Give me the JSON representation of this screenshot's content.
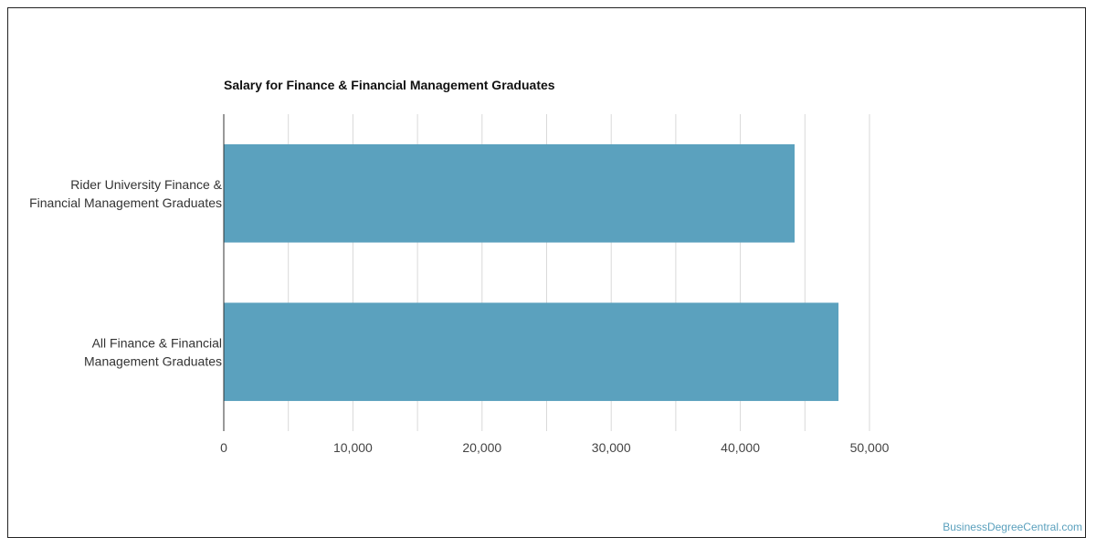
{
  "colors": {
    "bar": "#5ba1be",
    "grid": "#d9d9d9",
    "axis": "#333333"
  },
  "credit": "BusinessDegreeCentral.com",
  "chart_data": {
    "type": "bar",
    "orientation": "horizontal",
    "title": "Salary for Finance & Financial Management Graduates",
    "categories": [
      "Rider University Finance & Financial Management Graduates",
      "All Finance & Financial Management Graduates"
    ],
    "category_lines": [
      [
        "Rider University Finance &",
        "Financial Management Graduates"
      ],
      [
        "All Finance & Financial",
        "Management Graduates"
      ]
    ],
    "values": [
      44200,
      47600
    ],
    "xlim": [
      0,
      50000
    ],
    "xticks": [
      0,
      10000,
      20000,
      30000,
      40000,
      50000
    ],
    "xtick_labels": [
      "0",
      "10,000",
      "20,000",
      "30,000",
      "40,000",
      "50,000"
    ],
    "grid": true,
    "xlabel": "",
    "ylabel": ""
  }
}
